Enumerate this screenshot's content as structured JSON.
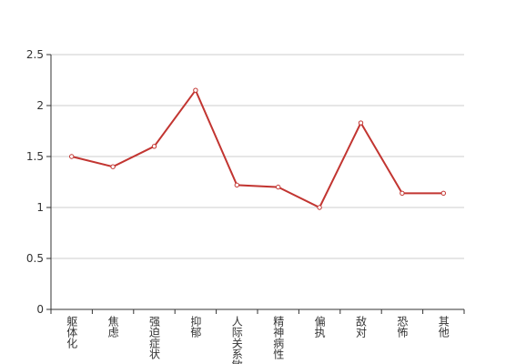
{
  "chart_data": {
    "type": "line",
    "categories": [
      "躯体化",
      "焦虑",
      "强迫症状",
      "抑郁",
      "人际关系敏感",
      "精神病性",
      "偏执",
      "敌对",
      "恐怖",
      "其他"
    ],
    "values": [
      1.5,
      1.4,
      1.6,
      2.15,
      1.22,
      1.2,
      1.0,
      1.83,
      1.14,
      1.14
    ],
    "color": "#c23531",
    "ylim": [
      0,
      2.5
    ],
    "yticks": [
      0,
      0.5,
      1,
      1.5,
      2,
      2.5
    ],
    "grid": true
  }
}
